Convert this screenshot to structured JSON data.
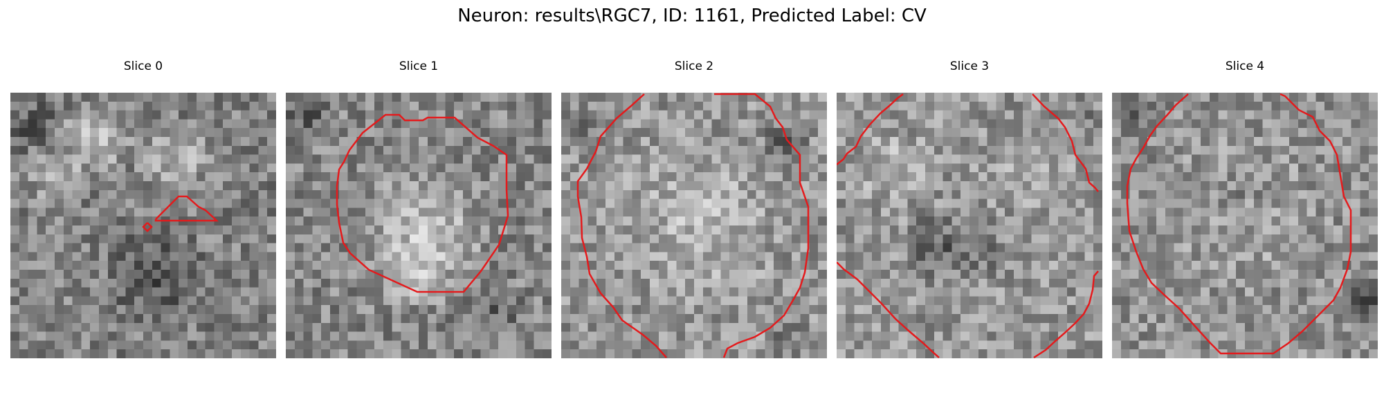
{
  "figure": {
    "title": "Neuron: results\\RGC7, ID: 1161, Predicted Label: CV"
  },
  "panels": [
    {
      "title": "Slice 0"
    },
    {
      "title": "Slice 1"
    },
    {
      "title": "Slice 2"
    },
    {
      "title": "Slice 3"
    },
    {
      "title": "Slice 4"
    }
  ],
  "colors": {
    "contour": "#e41a1c",
    "colormap": "gray"
  }
}
